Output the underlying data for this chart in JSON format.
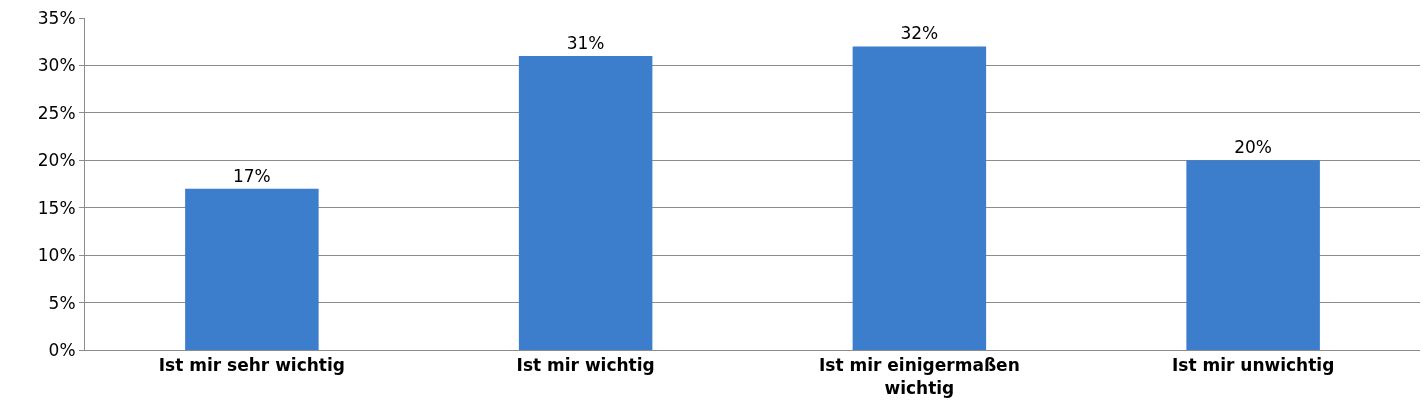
{
  "chart_data": {
    "type": "bar",
    "categories": [
      "Ist mir sehr wichtig",
      "Ist mir wichtig",
      "Ist mir einigermaßen wichtig",
      "Ist mir unwichtig"
    ],
    "values": [
      17,
      31,
      32,
      20
    ],
    "value_labels": [
      "17%",
      "31%",
      "32%",
      "20%"
    ],
    "color": "#3c7dcc",
    "ylim": [
      0,
      35
    ],
    "yticks": [
      {
        "value": 0,
        "label": "0%"
      },
      {
        "value": 5,
        "label": "5%"
      },
      {
        "value": 10,
        "label": "10%"
      },
      {
        "value": 15,
        "label": "15%"
      },
      {
        "value": 20,
        "label": "20%"
      },
      {
        "value": 25,
        "label": "25%"
      },
      {
        "value": 30,
        "label": "30%"
      },
      {
        "value": 35,
        "label": "35%"
      }
    ],
    "grid": "y",
    "legend": false
  }
}
